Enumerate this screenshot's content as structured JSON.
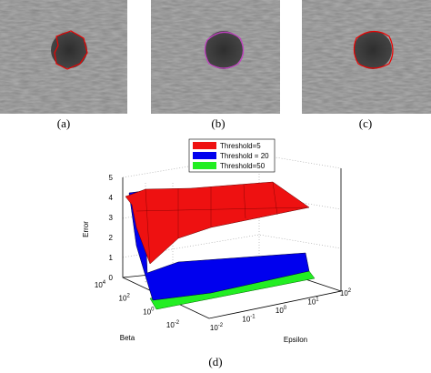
{
  "panels": [
    {
      "label": "(a)"
    },
    {
      "label": "(b)"
    },
    {
      "label": "(c)"
    }
  ],
  "plot": {
    "label": "(d)",
    "legend": [
      "Threshold=5",
      "Threshold = 20",
      "Threshold=50"
    ],
    "z_axis": {
      "title": "Error",
      "ticks": [
        "0",
        "1",
        "2",
        "3",
        "4",
        "5"
      ]
    },
    "beta_axis": {
      "title": "Beta",
      "ticks": [
        {
          "base": "10",
          "exp": "4"
        },
        {
          "base": "10",
          "exp": "2"
        },
        {
          "base": "10",
          "exp": "0"
        },
        {
          "base": "10",
          "exp": "-2"
        }
      ]
    },
    "epsilon_axis": {
      "title": "Epsilon",
      "ticks": [
        {
          "base": "10",
          "exp": "-2"
        },
        {
          "base": "10",
          "exp": "-1"
        },
        {
          "base": "10",
          "exp": "0"
        },
        {
          "base": "10",
          "exp": "1"
        },
        {
          "base": "10",
          "exp": "2"
        }
      ]
    }
  }
}
